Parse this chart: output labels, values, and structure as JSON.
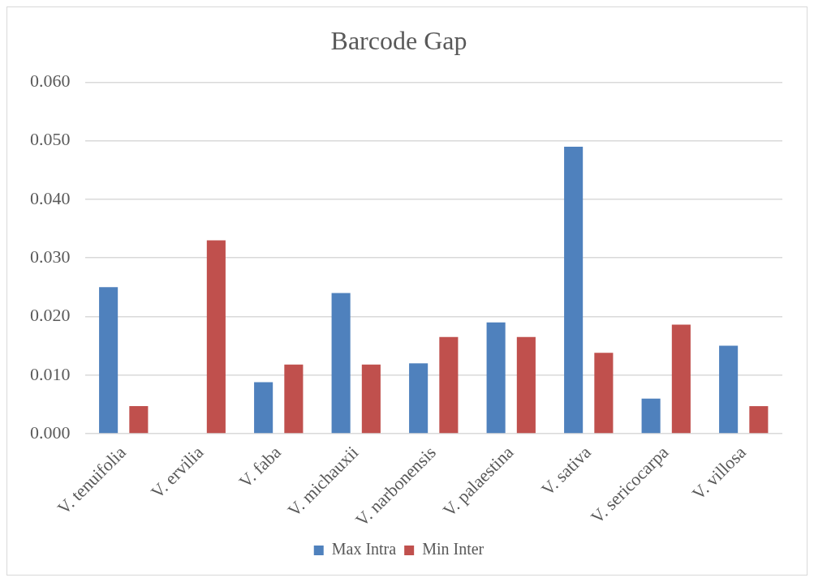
{
  "chart_data": {
    "type": "bar",
    "title": "Barcode Gap",
    "categories": [
      "V. tenuifolia",
      "V. ervilia",
      "V. faba",
      "V. michauxii",
      "V. narbonensis",
      "V. palaestina",
      "V. sativa",
      "V. sericocarpa",
      "V. villosa"
    ],
    "series": [
      {
        "name": "Max Intra",
        "color": "#4f81bd",
        "values": [
          0.025,
          0,
          0.0088,
          0.024,
          0.012,
          0.019,
          0.049,
          0.006,
          0.015
        ]
      },
      {
        "name": "Min Inter",
        "color": "#c0504d",
        "values": [
          0.0047,
          0.033,
          0.0118,
          0.0118,
          0.0165,
          0.0165,
          0.0138,
          0.0186,
          0.0047
        ]
      }
    ],
    "ylim": [
      0,
      0.06
    ],
    "yticks": [
      {
        "value": 0,
        "label": "0.000"
      },
      {
        "value": 0.01,
        "label": "0.010"
      },
      {
        "value": 0.02,
        "label": "0.020"
      },
      {
        "value": 0.03,
        "label": "0.030"
      },
      {
        "value": 0.04,
        "label": "0.040"
      },
      {
        "value": 0.05,
        "label": "0.050"
      },
      {
        "value": 0.06,
        "label": "0.060"
      }
    ],
    "grid": "y",
    "legend": "bottom"
  }
}
